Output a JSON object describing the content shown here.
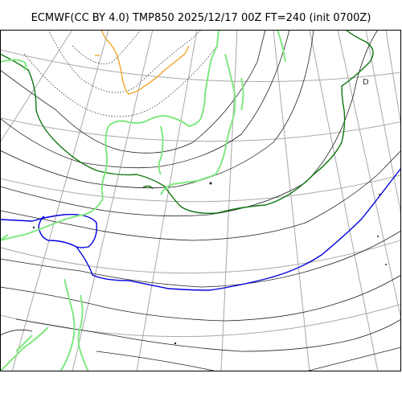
{
  "title": "ECMWF(CC BY 4.0) TMP850 2025/12/17 00Z FT=240 (init 0700Z)",
  "map": {
    "pressure_label": "D",
    "colors": {
      "coastline": "#7fe87f",
      "isotherm": "#222222",
      "isotherm_0c": "#117711",
      "isotherm_minus_6c": "#0000dd",
      "isotherm_cold": "#f0a020",
      "graticule": "#a8a8a8",
      "frame": "#000000"
    }
  }
}
